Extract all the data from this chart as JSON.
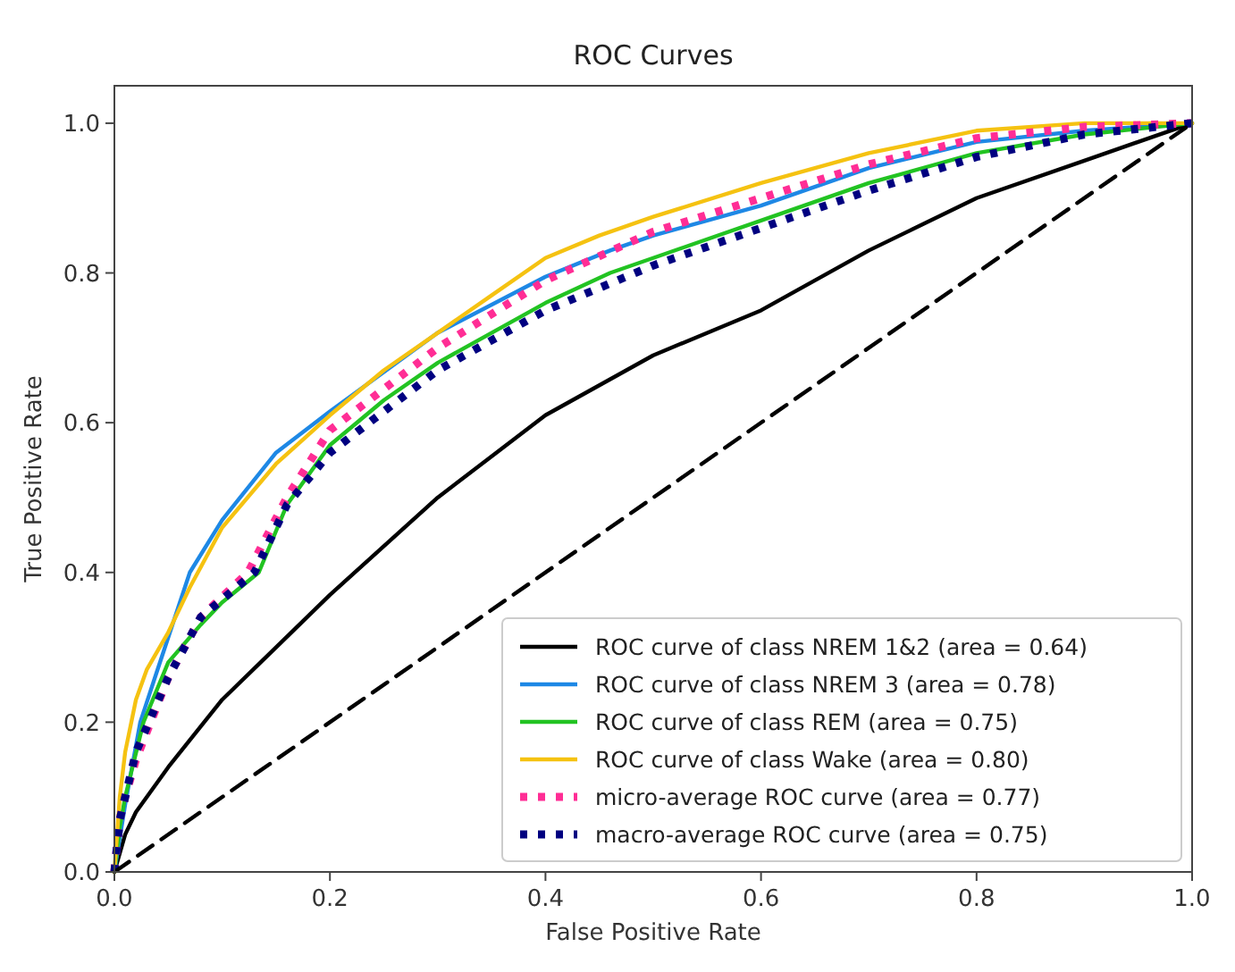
{
  "chart_data": {
    "type": "line",
    "title": "ROC Curves",
    "xlabel": "False Positive Rate",
    "ylabel": "True Positive Rate",
    "xlim": [
      0,
      1
    ],
    "ylim": [
      0,
      1.05
    ],
    "xticks": [
      {
        "value": 0,
        "label": "0.0"
      },
      {
        "value": 0.2,
        "label": "0.2"
      },
      {
        "value": 0.4,
        "label": "0.4"
      },
      {
        "value": 0.6,
        "label": "0.6"
      },
      {
        "value": 0.8,
        "label": "0.8"
      },
      {
        "value": 1,
        "label": "1.0"
      }
    ],
    "yticks": [
      {
        "value": 0,
        "label": "0.0"
      },
      {
        "value": 0.2,
        "label": "0.2"
      },
      {
        "value": 0.4,
        "label": "0.4"
      },
      {
        "value": 0.6,
        "label": "0.6"
      },
      {
        "value": 0.8,
        "label": "0.8"
      },
      {
        "value": 1,
        "label": "1.0"
      }
    ],
    "grid": false,
    "legend": "bottom right",
    "series": [
      {
        "name": "ROC curve of class NREM 1&2 (area = 0.64)",
        "color": "#000000",
        "line_style": "solid",
        "x": [
          0,
          0.01,
          0.02,
          0.05,
          0.1,
          0.15,
          0.2,
          0.3,
          0.4,
          0.5,
          0.6,
          0.7,
          0.8,
          0.9,
          1
        ],
        "values": [
          0,
          0.05,
          0.08,
          0.14,
          0.23,
          0.3,
          0.37,
          0.5,
          0.61,
          0.69,
          0.75,
          0.83,
          0.9,
          0.95,
          1
        ]
      },
      {
        "name": "ROC curve of class NREM 3 (area = 0.78)",
        "color": "#1e88e5",
        "line_style": "solid",
        "x": [
          0,
          0.01,
          0.024,
          0.04,
          0.07,
          0.1,
          0.15,
          0.2,
          0.3,
          0.4,
          0.46,
          0.5,
          0.6,
          0.7,
          0.8,
          0.9,
          1
        ],
        "values": [
          0,
          0.09,
          0.2,
          0.27,
          0.4,
          0.47,
          0.56,
          0.615,
          0.72,
          0.795,
          0.83,
          0.85,
          0.89,
          0.94,
          0.975,
          0.99,
          1
        ]
      },
      {
        "name": "ROC curve of class REM (area = 0.75)",
        "color": "#22c322",
        "line_style": "solid",
        "x": [
          0,
          0.005,
          0.01,
          0.027,
          0.05,
          0.08,
          0.1,
          0.134,
          0.16,
          0.2,
          0.25,
          0.3,
          0.4,
          0.46,
          0.5,
          0.6,
          0.7,
          0.8,
          0.9,
          1
        ],
        "values": [
          0,
          0.06,
          0.1,
          0.2,
          0.28,
          0.33,
          0.36,
          0.4,
          0.49,
          0.57,
          0.63,
          0.68,
          0.76,
          0.8,
          0.82,
          0.87,
          0.92,
          0.96,
          0.985,
          1
        ]
      },
      {
        "name": "ROC curve of class Wake (area = 0.80)",
        "color": "#f5c211",
        "line_style": "solid",
        "x": [
          0,
          0.005,
          0.01,
          0.02,
          0.03,
          0.05,
          0.07,
          0.1,
          0.15,
          0.2,
          0.25,
          0.3,
          0.35,
          0.4,
          0.45,
          0.5,
          0.6,
          0.7,
          0.8,
          0.9,
          1
        ],
        "values": [
          0,
          0.1,
          0.16,
          0.23,
          0.27,
          0.32,
          0.38,
          0.46,
          0.545,
          0.61,
          0.67,
          0.72,
          0.77,
          0.82,
          0.85,
          0.875,
          0.92,
          0.96,
          0.99,
          1,
          1
        ]
      },
      {
        "name": "micro-average ROC curve (area = 0.77)",
        "color": "#ff2d95",
        "line_style": "dotted",
        "x": [
          0,
          0.005,
          0.01,
          0.02,
          0.05,
          0.08,
          0.124,
          0.16,
          0.2,
          0.3,
          0.4,
          0.5,
          0.6,
          0.7,
          0.8,
          0.9,
          1
        ],
        "values": [
          0,
          0.07,
          0.1,
          0.15,
          0.26,
          0.34,
          0.4,
          0.5,
          0.59,
          0.7,
          0.79,
          0.855,
          0.9,
          0.945,
          0.98,
          0.995,
          1
        ]
      },
      {
        "name": "macro-average ROC curve (area = 0.75)",
        "color": "#000080",
        "line_style": "dotted",
        "x": [
          0,
          0.005,
          0.01,
          0.02,
          0.05,
          0.08,
          0.13,
          0.16,
          0.2,
          0.3,
          0.4,
          0.5,
          0.6,
          0.7,
          0.8,
          0.9,
          1
        ],
        "values": [
          0,
          0.07,
          0.1,
          0.16,
          0.26,
          0.34,
          0.4,
          0.49,
          0.56,
          0.67,
          0.75,
          0.81,
          0.86,
          0.91,
          0.955,
          0.985,
          1
        ]
      },
      {
        "color": "#000000",
        "line_style": "dashed",
        "x": [
          0,
          1
        ],
        "values": [
          0,
          1
        ]
      }
    ]
  }
}
